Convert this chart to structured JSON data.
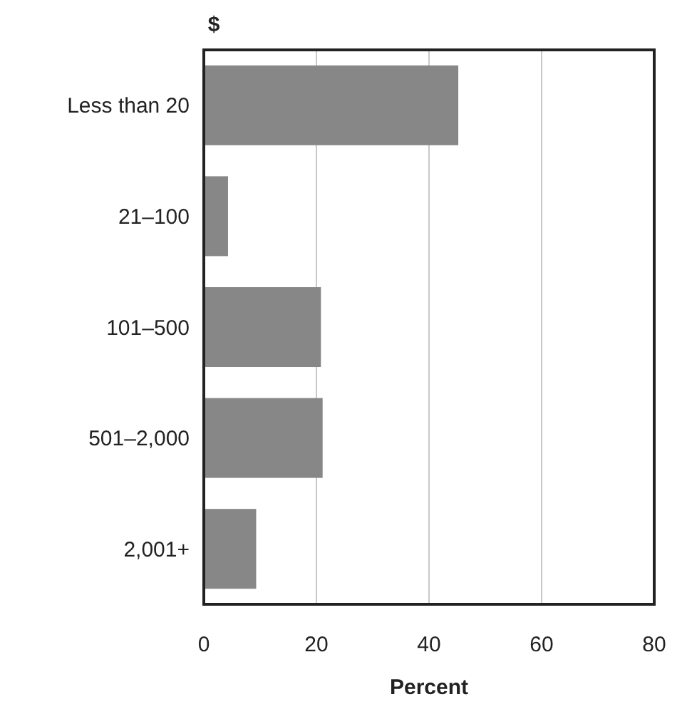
{
  "chart_data": {
    "type": "bar",
    "orientation": "horizontal",
    "title": "$",
    "xlabel": "Percent",
    "categories": [
      "Less than 20",
      "21–100",
      "101–500",
      "501–2,000",
      "2,001+"
    ],
    "values": [
      45.2,
      4.3,
      20.8,
      21.1,
      9.3
    ],
    "color": "#878787",
    "xlim": [
      0,
      80
    ],
    "xticks": [
      0,
      20,
      40,
      60,
      80
    ],
    "grid": "x"
  }
}
